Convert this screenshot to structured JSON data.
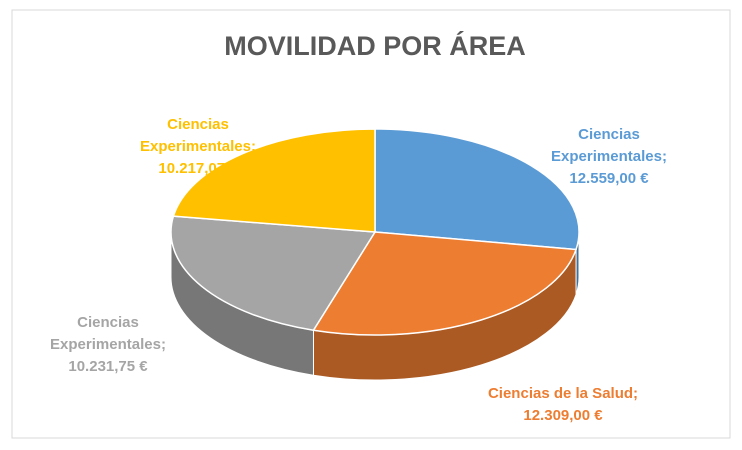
{
  "chart_data": {
    "type": "pie3d",
    "title": "MOVILIDAD POR ÁREA",
    "categories": [
      "Ciencias Experimentales",
      "Ciencias de la Salud",
      "Ciencias Experimentales",
      "Ciencias Experimentales"
    ],
    "values": [
      12559.0,
      12309.0,
      10231.75,
      10217.07
    ],
    "value_labels": [
      "12.559,00 €",
      "12.309,00 €",
      "10.231,75 €",
      "10.217,07 €"
    ],
    "label_separator": ";",
    "colors": [
      "#5b9bd5",
      "#ed7d31",
      "#a5a5a5",
      "#ffc000"
    ]
  }
}
